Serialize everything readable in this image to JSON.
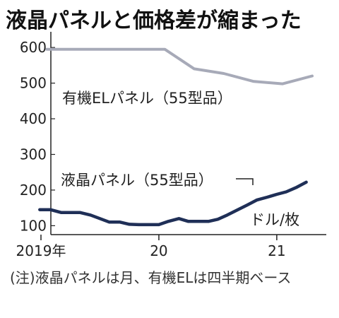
{
  "title": "液晶パネルと価格差が縮まった",
  "note": "(注)液晶パネルは月、有機ELは四半期ベース",
  "colors": {
    "oled": "#a7aab8",
    "lcd": "#1f2f57",
    "axis": "#222222",
    "grid": "#bbbbbb"
  },
  "chart_data": {
    "type": "line",
    "title": "液晶パネルと価格差が縮まった",
    "unit_label": "ドル/枚",
    "ylim": [
      75,
      640
    ],
    "yticks": [
      100,
      200,
      300,
      400,
      500,
      600
    ],
    "xlim": [
      2019.0,
      2021.42
    ],
    "xticks": [
      {
        "x": 2019,
        "label": "2019年"
      },
      {
        "x": 2020,
        "label": "20"
      },
      {
        "x": 2021,
        "label": "21"
      }
    ],
    "grid": false,
    "series": [
      {
        "name": "有機ELパネル（55型品）",
        "color": "#a7aab8",
        "points": [
          [
            2019.05,
            595
          ],
          [
            2019.3,
            595
          ],
          [
            2019.55,
            595
          ],
          [
            2019.8,
            595
          ],
          [
            2020.05,
            595
          ],
          [
            2020.3,
            540
          ],
          [
            2020.55,
            527
          ],
          [
            2020.8,
            505
          ],
          [
            2021.05,
            498
          ],
          [
            2021.3,
            520
          ]
        ]
      },
      {
        "name": "液晶パネル（55型品）",
        "color": "#1f2f57",
        "points": [
          [
            2018.99,
            145
          ],
          [
            2019.08,
            145
          ],
          [
            2019.17,
            137
          ],
          [
            2019.25,
            137
          ],
          [
            2019.33,
            137
          ],
          [
            2019.42,
            130
          ],
          [
            2019.5,
            120
          ],
          [
            2019.58,
            110
          ],
          [
            2019.67,
            110
          ],
          [
            2019.75,
            104
          ],
          [
            2019.83,
            103
          ],
          [
            2019.92,
            103
          ],
          [
            2020.0,
            103
          ],
          [
            2020.08,
            112
          ],
          [
            2020.17,
            120
          ],
          [
            2020.25,
            112
          ],
          [
            2020.33,
            112
          ],
          [
            2020.42,
            112
          ],
          [
            2020.5,
            118
          ],
          [
            2020.58,
            130
          ],
          [
            2020.67,
            145
          ],
          [
            2020.75,
            158
          ],
          [
            2020.83,
            172
          ],
          [
            2020.92,
            180
          ],
          [
            2021.0,
            188
          ],
          [
            2021.08,
            195
          ],
          [
            2021.17,
            208
          ],
          [
            2021.25,
            222
          ]
        ]
      }
    ]
  }
}
